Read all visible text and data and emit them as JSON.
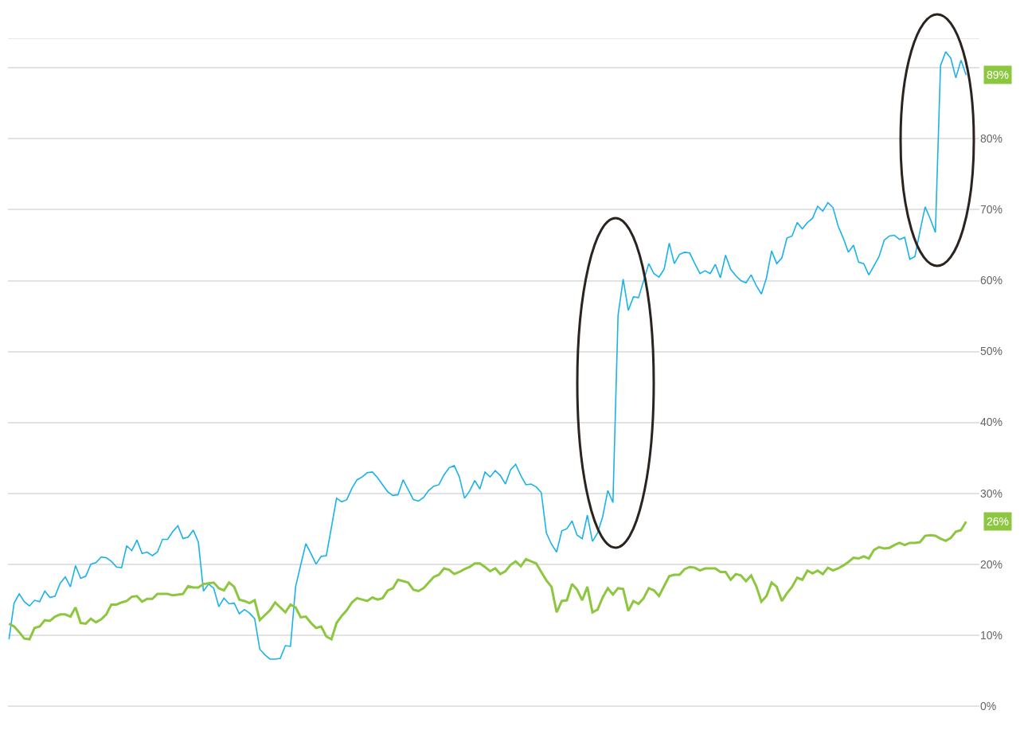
{
  "chart_data": {
    "type": "line",
    "categories": [
      null,
      null,
      null,
      null,
      null,
      null,
      null,
      null,
      null,
      null,
      null,
      null,
      null,
      null,
      null,
      null,
      null,
      null,
      null,
      null,
      null,
      null,
      null,
      null,
      null,
      null,
      null,
      null,
      null,
      null,
      null,
      null,
      null,
      null,
      null,
      null,
      null,
      null,
      null,
      null,
      null,
      null,
      null,
      null,
      null,
      null,
      null,
      null,
      null,
      null,
      null,
      null,
      null,
      null,
      null,
      null,
      null,
      null,
      null,
      null,
      null,
      null,
      null,
      null,
      null,
      null,
      null,
      null,
      null,
      null,
      null,
      null,
      null,
      null,
      null,
      null,
      null,
      null,
      null,
      null,
      null,
      null,
      null,
      null,
      null,
      null,
      null,
      null,
      null,
      null,
      null,
      null,
      null,
      null,
      null,
      null,
      null,
      null,
      null,
      null,
      null,
      null,
      null,
      null,
      null,
      null,
      null,
      null,
      null,
      null,
      null,
      null,
      null,
      null,
      null,
      null,
      null,
      null,
      null,
      null,
      null,
      null,
      null,
      null,
      null,
      null,
      null,
      null,
      null,
      null,
      null,
      null,
      null,
      null,
      null,
      null,
      null,
      null,
      null,
      null,
      null,
      null,
      null,
      null,
      null,
      null,
      null,
      null,
      null,
      null,
      null,
      null,
      null,
      null,
      null,
      null,
      null,
      null,
      null,
      null,
      null,
      null,
      null,
      null,
      null,
      null,
      null,
      null,
      null,
      null,
      null,
      null,
      null,
      null,
      null,
      null,
      null,
      null,
      null,
      null,
      null,
      null,
      null,
      null,
      null,
      null,
      null,
      null
    ],
    "series": [
      {
        "color": "#1ab2ea",
        "values": [
          9.4,
          14.5,
          15.8,
          14.7,
          14.1,
          14.9,
          14.7,
          16.2,
          15.3,
          15.5,
          17.3,
          18.2,
          16.8,
          19.8,
          18.0,
          18.3,
          20.0,
          20.2,
          21.0,
          20.9,
          20.4,
          19.6,
          19.5,
          22.6,
          21.9,
          23.4,
          21.5,
          21.7,
          21.2,
          21.7,
          23.5,
          23.5,
          24.6,
          25.4,
          23.6,
          23.8,
          24.8,
          23.1,
          16.2,
          17.2,
          16.6,
          14.0,
          15.2,
          14.4,
          14.5,
          13.0,
          13.6,
          13.1,
          12.3,
          8.0,
          7.2,
          6.6,
          6.6,
          6.7,
          8.5,
          8.4,
          16.8,
          19.9,
          22.9,
          21.5,
          20.0,
          21.1,
          21.2,
          25.2,
          29.3,
          28.8,
          29.1,
          30.7,
          31.9,
          32.3,
          32.9,
          33.0,
          32.2,
          31.2,
          30.2,
          29.7,
          29.8,
          31.9,
          30.5,
          29.1,
          28.9,
          29.4,
          30.4,
          31.0,
          31.2,
          32.6,
          33.6,
          33.9,
          32.3,
          29.3,
          30.3,
          31.8,
          30.6,
          33.0,
          32.3,
          33.2,
          32.5,
          31.3,
          33.3,
          34.1,
          32.5,
          31.2,
          31.3,
          30.9,
          30.1,
          24.4,
          22.8,
          21.7,
          24.7,
          25.0,
          26.1,
          24.1,
          23.6,
          26.9,
          23.2,
          24.4,
          26.7,
          30.4,
          28.7,
          55.1,
          60.2,
          55.8,
          57.7,
          57.6,
          60.0,
          62.4,
          61.0,
          60.5,
          61.6,
          65.3,
          62.4,
          63.7,
          64.0,
          63.9,
          62.4,
          61.0,
          61.4,
          61.0,
          62.3,
          60.4,
          63.6,
          61.6,
          60.7,
          60.0,
          59.7,
          60.8,
          59.3,
          58.1,
          60.4,
          64.2,
          62.4,
          63.2,
          66.0,
          66.3,
          68.2,
          67.3,
          68.2,
          68.8,
          70.5,
          69.8,
          71.0,
          70.3,
          67.7,
          66.0,
          64.0,
          65.0,
          62.6,
          62.4,
          60.8,
          62.1,
          63.4,
          65.7,
          66.3,
          66.4,
          65.8,
          66.1,
          63.0,
          63.4,
          67.0,
          70.4,
          68.7,
          66.8,
          90.3,
          92.3,
          91.4,
          88.6,
          91.1,
          89
        ]
      },
      {
        "color": "#8dc63f",
        "values": [
          11.6,
          11.2,
          10.4,
          9.5,
          9.4,
          11.0,
          11.2,
          12.1,
          12.0,
          12.6,
          12.9,
          12.9,
          12.6,
          13.9,
          11.7,
          11.6,
          12.3,
          11.8,
          12.2,
          12.9,
          14.3,
          14.3,
          14.6,
          14.8,
          15.4,
          15.5,
          14.7,
          15.1,
          15.1,
          15.8,
          15.8,
          15.8,
          15.6,
          15.7,
          15.8,
          16.9,
          16.7,
          16.7,
          17.2,
          17.3,
          17.4,
          16.6,
          16.3,
          17.4,
          16.8,
          15.0,
          14.8,
          14.5,
          14.9,
          12.1,
          12.8,
          13.5,
          14.6,
          13.9,
          13.2,
          14.3,
          13.9,
          12.5,
          12.6,
          11.7,
          11.0,
          11.2,
          9.8,
          9.4,
          11.7,
          12.7,
          13.5,
          14.6,
          15.2,
          15.0,
          14.8,
          15.3,
          15.0,
          15.2,
          16.3,
          16.6,
          17.8,
          17.6,
          17.4,
          16.4,
          16.2,
          16.6,
          17.4,
          18.2,
          18.5,
          19.4,
          19.2,
          18.6,
          18.9,
          19.3,
          19.6,
          20.1,
          20.1,
          19.6,
          19.0,
          19.4,
          18.6,
          19.0,
          19.9,
          20.4,
          19.7,
          20.7,
          20.4,
          20.1,
          18.9,
          17.7,
          16.8,
          13.2,
          14.8,
          14.9,
          17.2,
          16.4,
          14.9,
          16.8,
          13.2,
          13.6,
          15.3,
          16.6,
          15.7,
          16.6,
          16.5,
          13.4,
          14.8,
          14.4,
          15.2,
          16.6,
          16.3,
          15.5,
          16.9,
          18.3,
          18.5,
          18.5,
          19.3,
          19.6,
          19.5,
          19.1,
          19.4,
          19.4,
          19.4,
          18.9,
          18.9,
          17.8,
          18.6,
          18.4,
          17.6,
          18.4,
          16.9,
          14.7,
          15.5,
          17.4,
          16.8,
          14.8,
          15.9,
          16.8,
          18.1,
          17.8,
          19.1,
          18.7,
          19.1,
          18.6,
          19.5,
          19.1,
          19.4,
          19.8,
          20.3,
          20.9,
          20.8,
          21.1,
          20.8,
          22.0,
          22.4,
          22.2,
          22.3,
          22.7,
          23.0,
          22.7,
          23.0,
          23.0,
          23.1,
          24.0,
          24.1,
          24.0,
          23.6,
          23.3,
          23.7,
          24.6,
          24.8,
          26
        ]
      }
    ],
    "annotations": [
      "89%",
      "26%"
    ],
    "ylim": [
      -3.4,
      94.2
    ],
    "yticks": [
      {
        "value": 0,
        "label": "0%"
      },
      {
        "value": 10,
        "label": "10%"
      },
      {
        "value": 20,
        "label": "20%"
      },
      {
        "value": 30,
        "label": "30%"
      },
      {
        "value": 40,
        "label": "40%"
      },
      {
        "value": 50,
        "label": "50%"
      },
      {
        "value": 60,
        "label": "60%"
      },
      {
        "value": 70,
        "label": "70%"
      },
      {
        "value": 80,
        "label": "80%"
      },
      {
        "value": 90,
        "label": null
      }
    ],
    "grid": "y",
    "tick_labels": "y"
  }
}
